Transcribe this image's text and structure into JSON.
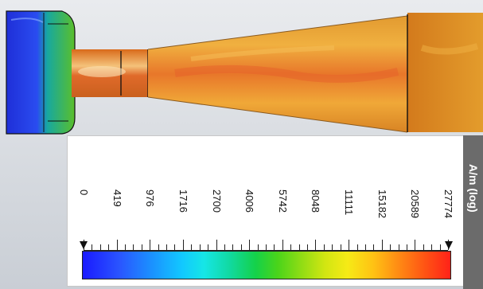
{
  "colorbar": {
    "unit": "A/m (log)",
    "tick_labels": [
      "0",
      "419",
      "976",
      "1716",
      "2700",
      "4006",
      "5742",
      "8048",
      "11111",
      "15182",
      "20589",
      "27774"
    ]
  },
  "colors": {
    "panel": "#ffffff",
    "unit_strip": "#6b6b6b",
    "field_high": "#ff2218",
    "field_low": "#1a1aff"
  }
}
